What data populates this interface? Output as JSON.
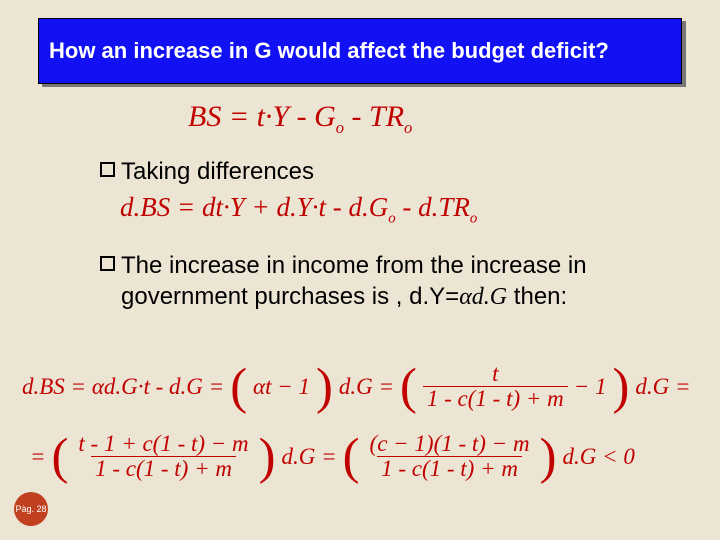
{
  "title": "How an increase in G would affect the budget deficit?",
  "bullets": {
    "b1": "Taking differences",
    "b2_part1": "The increase in income from the increase in government purchases is , d.Y=",
    "b2_alpha": "α",
    "b2_dg": "d.G",
    "b2_then": "  then:"
  },
  "eq1": {
    "lhs": "BS",
    "eq": " = ",
    "t1": "t·Y - G",
    "sub1": "o",
    "t2": " - TR",
    "sub2": "o"
  },
  "eq2": {
    "pre": "d.BS = dt·Y + d.Y·t - d.G",
    "sub1": "o",
    "mid": " - d.TR",
    "sub2": "o"
  },
  "eq3": {
    "lhs": "d.BS = αd.G·t - d.G = ",
    "pl": "(",
    "mid1": "αt − 1",
    "pr": ")",
    "dot": "d.G = ",
    "num": "t",
    "den": "1 - c(1 - t) + m",
    "minus1": " − 1",
    "tail": "d.G ="
  },
  "eq4": {
    "eqsign": "= ",
    "num1": "t - 1 + c(1 - t) − m",
    "den1": "1 - c(1 - t) + m",
    "dg1": "d.G = ",
    "num2": "(c − 1)(1 - t) − m",
    "den2": "1 - c(1 - t) + m",
    "tail": "d.G < 0"
  },
  "page": "Pàg. 28"
}
